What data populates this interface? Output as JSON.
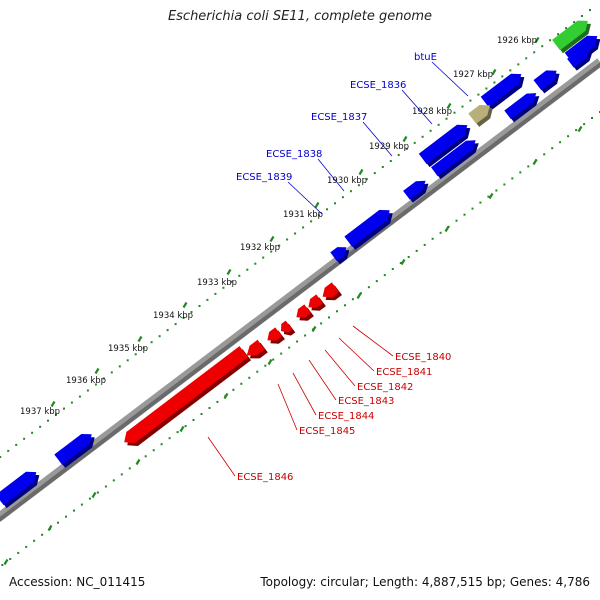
{
  "title": "Escherichia coli SE11, complete genome",
  "footer": {
    "accession_label": "Accession:",
    "accession": "NC_011415",
    "topology_label": "Topology:",
    "topology": "circular",
    "length_label": "Length:",
    "length": "4,887,515 bp",
    "genes_label": "Genes:",
    "genes": "4,786"
  },
  "colors": {
    "forward_gene": "#0000ee",
    "reverse_gene": "#ee0000",
    "rna_gene": "#33cc33",
    "pseudo_gene": "#b8b07a",
    "backbone": "#777777",
    "tick": "#228822",
    "forward_label": "#0000cc",
    "reverse_label": "#cc0000"
  },
  "ticks": [
    {
      "kbp": 1926,
      "label": "1926 kbp"
    },
    {
      "kbp": 1927,
      "label": "1927 kbp"
    },
    {
      "kbp": 1928,
      "label": "1928 kbp"
    },
    {
      "kbp": 1929,
      "label": "1929 kbp"
    },
    {
      "kbp": 1930,
      "label": "1930 kbp"
    },
    {
      "kbp": 1931,
      "label": "1931 kbp"
    },
    {
      "kbp": 1932,
      "label": "1932 kbp"
    },
    {
      "kbp": 1933,
      "label": "1933 kbp"
    },
    {
      "kbp": 1934,
      "label": "1934 kbp"
    },
    {
      "kbp": 1935,
      "label": "1935 kbp"
    },
    {
      "kbp": 1936,
      "label": "1936 kbp"
    },
    {
      "kbp": 1937,
      "label": "1937 kbp"
    }
  ],
  "forward_labels": [
    {
      "text": "btuE"
    },
    {
      "text": "ECSE_1836"
    },
    {
      "text": "ECSE_1837"
    },
    {
      "text": "ECSE_1838"
    },
    {
      "text": "ECSE_1839"
    }
  ],
  "reverse_labels": [
    {
      "text": "ECSE_1840"
    },
    {
      "text": "ECSE_1841"
    },
    {
      "text": "ECSE_1842"
    },
    {
      "text": "ECSE_1843"
    },
    {
      "text": "ECSE_1844"
    },
    {
      "text": "ECSE_1845"
    },
    {
      "text": "ECSE_1846"
    }
  ]
}
